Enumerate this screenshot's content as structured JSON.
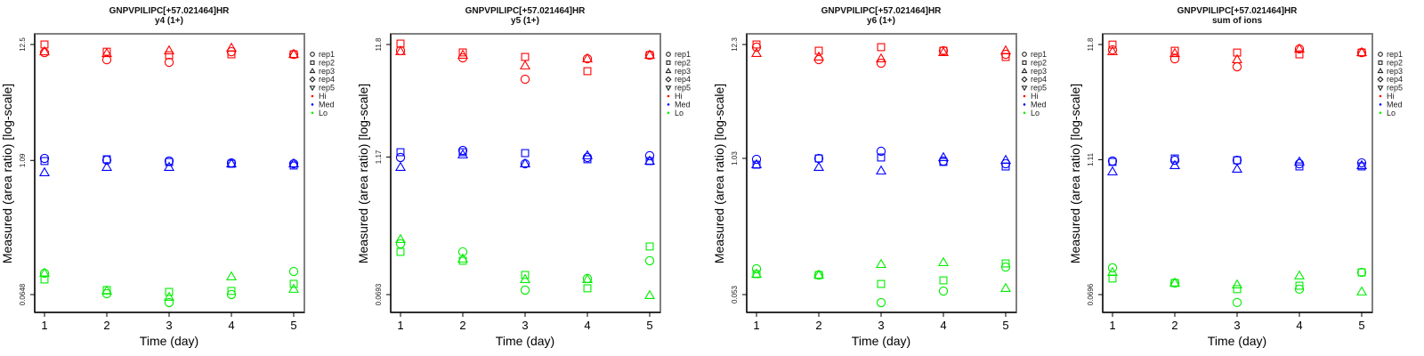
{
  "chart_data": {
    "type": "scatter",
    "y_scale": "log10",
    "xlabel": "Time (day)",
    "ylabel": "Measured (area ratio) [log-scale]",
    "x_ticks": [
      "1",
      "2",
      "3",
      "4",
      "5"
    ],
    "x": [
      1,
      2,
      3,
      4,
      5
    ],
    "legend": {
      "placement": "right",
      "shapes": [
        {
          "label": "rep1",
          "shape": "circle"
        },
        {
          "label": "rep2",
          "shape": "square"
        },
        {
          "label": "rep3",
          "shape": "triangle"
        },
        {
          "label": "rep4",
          "shape": "diamond"
        },
        {
          "label": "rep5",
          "shape": "triangle-down"
        }
      ],
      "groups": [
        {
          "label": "Hi",
          "color": "#ff0000"
        },
        {
          "label": "Med",
          "color": "#0000ff"
        },
        {
          "label": "Lo",
          "color": "#00ee00"
        }
      ]
    },
    "panels": [
      {
        "title": "GNPVPILIPC[+57.021464]HR",
        "subtitle": "y4 (1+)",
        "y_ticks": [
          "12.5",
          "1.09",
          "0.0648"
        ],
        "y_tick_values": [
          12.5,
          1.09,
          0.0648
        ],
        "series": [
          {
            "group": "Hi",
            "rep": "rep1",
            "log10_values": [
              1.023,
              0.958,
              0.934,
              1.031,
              1.007
            ]
          },
          {
            "group": "Hi",
            "rep": "rep2",
            "log10_values": [
              1.097,
              1.031,
              0.999,
              1.007,
              1.007
            ]
          },
          {
            "group": "Hi",
            "rep": "rep3",
            "log10_values": [
              1.031,
              1.015,
              1.04,
              1.064,
              1.007
            ]
          },
          {
            "group": "Med",
            "rep": "rep1",
            "log10_values": [
              0.056,
              0.04,
              0.032,
              0.015,
              0.007
            ]
          },
          {
            "group": "Med",
            "rep": "rep2",
            "log10_values": [
              0.032,
              0.048,
              0.023,
              0.007,
              -0.009
            ]
          },
          {
            "group": "Med",
            "rep": "rep3",
            "log10_values": [
              -0.074,
              -0.025,
              -0.025,
              0.007,
              0.007
            ]
          },
          {
            "group": "Lo",
            "rep": "rep1",
            "log10_values": [
              -0.993,
              -1.18,
              -1.261,
              -1.188,
              -0.977
            ]
          },
          {
            "group": "Lo",
            "rep": "rep2",
            "log10_values": [
              -1.05,
              -1.147,
              -1.164,
              -1.155,
              -1.09
            ]
          },
          {
            "group": "Lo",
            "rep": "rep3",
            "log10_values": [
              -0.993,
              -1.155,
              -1.212,
              -1.025,
              -1.139
            ]
          }
        ]
      },
      {
        "title": "GNPVPILIPC[+57.021464]HR",
        "subtitle": "y5 (1+)",
        "y_ticks": [
          "11.8",
          "1.17",
          "0.0693"
        ],
        "y_tick_values": [
          11.8,
          1.17,
          0.0693
        ],
        "series": [
          {
            "group": "Hi",
            "rep": "rep1",
            "log10_values": [
              1.017,
              0.953,
              0.762,
              0.945,
              0.977
            ]
          },
          {
            "group": "Hi",
            "rep": "rep2",
            "log10_values": [
              1.08,
              1.001,
              0.961,
              0.834,
              0.977
            ]
          },
          {
            "group": "Hi",
            "rep": "rep3",
            "log10_values": [
              1.009,
              0.977,
              0.882,
              0.945,
              0.977
            ]
          },
          {
            "group": "Med",
            "rep": "rep1",
            "log10_values": [
              0.064,
              0.127,
              0.008,
              0.064,
              0.08
            ]
          },
          {
            "group": "Med",
            "rep": "rep2",
            "log10_values": [
              0.111,
              0.111,
              0.103,
              0.048,
              0.032
            ]
          },
          {
            "group": "Med",
            "rep": "rep3",
            "log10_values": [
              -0.024,
              0.088,
              0.008,
              0.08,
              0.032
            ]
          },
          {
            "group": "Lo",
            "rep": "rep1",
            "log10_values": [
              -0.706,
              -0.778,
              -1.119,
              -1.016,
              -0.857
            ]
          },
          {
            "group": "Lo",
            "rep": "rep2",
            "log10_values": [
              -0.778,
              -0.857,
              -0.984,
              -1.103,
              -0.73
            ]
          },
          {
            "group": "Lo",
            "rep": "rep3",
            "log10_values": [
              -0.667,
              -0.841,
              -1.024,
              -1.024,
              -1.167
            ]
          }
        ]
      },
      {
        "title": "GNPVPILIPC[+57.021464]HR",
        "subtitle": "y6 (1+)",
        "y_ticks": [
          "12.3",
          "1.03",
          "0.053"
        ],
        "y_tick_values": [
          12.3,
          1.03,
          0.053
        ],
        "series": [
          {
            "group": "Hi",
            "rep": "rep1",
            "log10_values": [
              1.065,
              0.947,
              0.913,
              1.031,
              0.997
            ]
          },
          {
            "group": "Hi",
            "rep": "rep2",
            "log10_values": [
              1.09,
              1.031,
              1.065,
              1.031,
              0.972
            ]
          },
          {
            "group": "Hi",
            "rep": "rep3",
            "log10_values": [
              1.006,
              0.972,
              0.955,
              1.014,
              1.031
            ]
          },
          {
            "group": "Med",
            "rep": "rep1",
            "log10_values": [
              0.004,
              0.012,
              0.08,
              -0.013,
              -0.038
            ]
          },
          {
            "group": "Med",
            "rep": "rep2",
            "log10_values": [
              -0.047,
              0.012,
              0.021,
              -0.021,
              -0.064
            ]
          },
          {
            "group": "Med",
            "rep": "rep3",
            "log10_values": [
              -0.047,
              -0.072,
              -0.106,
              0.021,
              -0.005
            ]
          },
          {
            "group": "Lo",
            "rep": "rep1",
            "log10_values": [
              -1.032,
              -1.091,
              -1.352,
              -1.242,
              -1.015
            ]
          },
          {
            "group": "Lo",
            "rep": "rep2",
            "log10_values": [
              -1.082,
              -1.091,
              -1.175,
              -1.141,
              -0.981
            ]
          },
          {
            "group": "Lo",
            "rep": "rep3",
            "log10_values": [
              -1.082,
              -1.091,
              -0.99,
              -0.973,
              -1.217
            ]
          }
        ]
      },
      {
        "title": "GNPVPILIPC[+57.021464]HR",
        "subtitle": "sum of ions",
        "y_ticks": [
          "11.8",
          "1.11",
          "0.0696"
        ],
        "y_tick_values": [
          11.8,
          1.11,
          0.0696
        ],
        "series": [
          {
            "group": "Hi",
            "rep": "rep1",
            "log10_values": [
              1.024,
              0.944,
              0.873,
              1.032,
              1.0
            ]
          },
          {
            "group": "Hi",
            "rep": "rep2",
            "log10_values": [
              1.071,
              1.016,
              1.0,
              0.984,
              1.0
            ]
          },
          {
            "group": "Hi",
            "rep": "rep3",
            "log10_values": [
              1.008,
              0.992,
              0.937,
              1.032,
              1.0
            ]
          },
          {
            "group": "Med",
            "rep": "rep1",
            "log10_values": [
              0.033,
              0.04,
              0.04,
              0.009,
              0.017
            ]
          },
          {
            "group": "Med",
            "rep": "rep2",
            "log10_values": [
              0.025,
              0.056,
              0.04,
              -0.015,
              -0.015
            ]
          },
          {
            "group": "Med",
            "rep": "rep3",
            "log10_values": [
              -0.063,
              -0.007,
              -0.039,
              0.025,
              -0.007
            ]
          },
          {
            "group": "Lo",
            "rep": "rep1",
            "log10_values": [
              -0.919,
              -1.054,
              -1.228,
              -1.109,
              -0.959
            ]
          },
          {
            "group": "Lo",
            "rep": "rep2",
            "log10_values": [
              -1.014,
              -1.054,
              -1.109,
              -1.078,
              -0.959
            ]
          },
          {
            "group": "Lo",
            "rep": "rep3",
            "log10_values": [
              -0.959,
              -1.054,
              -1.07,
              -0.99,
              -1.133
            ]
          }
        ]
      }
    ]
  }
}
